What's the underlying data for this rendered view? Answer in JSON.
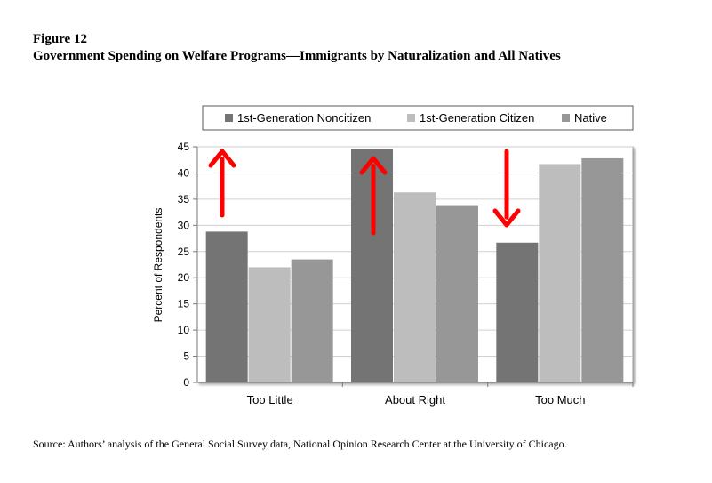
{
  "figure": {
    "label": "Figure 12",
    "title": "Government Spending on Welfare Programs—Immigrants by Naturalization and All Natives",
    "source": "Source: Authors’ analysis of the General Social Survey data, National Opinion Research Center at the University of Chicago."
  },
  "chart_data": {
    "type": "bar",
    "title": "",
    "xlabel": "",
    "ylabel": "Percent of Respondents",
    "ylim": [
      0,
      45
    ],
    "yticks": [
      0,
      5,
      10,
      15,
      20,
      25,
      30,
      35,
      40,
      45
    ],
    "grid": true,
    "legend_position": "top",
    "categories": [
      "Too Little",
      "About Right",
      "Too Much"
    ],
    "series": [
      {
        "name": "1st-Generation Noncitizen",
        "color": "#747474",
        "values": [
          28.8,
          44.5,
          26.7
        ]
      },
      {
        "name": "1st-Generation Citizen",
        "color": "#bdbdbd",
        "values": [
          22.0,
          36.3,
          41.7
        ]
      },
      {
        "name": "Native",
        "color": "#979797",
        "values": [
          23.5,
          33.7,
          42.8
        ]
      }
    ],
    "annotations": [
      {
        "type": "arrow",
        "direction": "up",
        "category": "Too Little",
        "color": "#ff0000"
      },
      {
        "type": "arrow",
        "direction": "up",
        "category": "About Right",
        "color": "#ff0000"
      },
      {
        "type": "arrow",
        "direction": "down",
        "category": "Too Much",
        "color": "#ff0000"
      }
    ]
  }
}
